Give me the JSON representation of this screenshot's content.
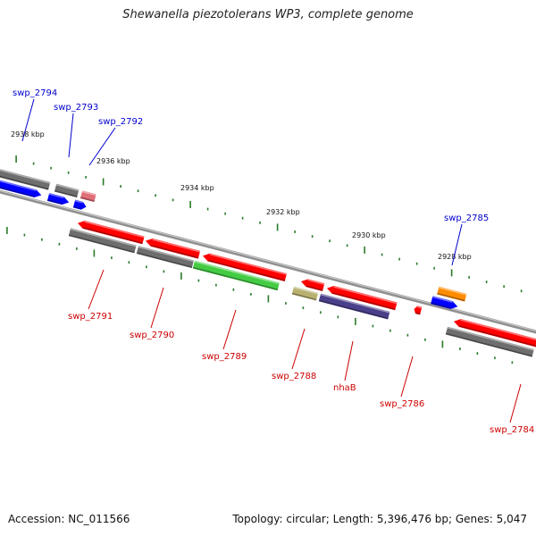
{
  "title": "Shewanella piezotolerans WP3, complete genome",
  "footer": {
    "accession": "Accession: NC_011566",
    "info": "Topology: circular; Length: 5,396,476 bp; Genes: 5,047"
  },
  "colors": {
    "backbone": "#8f8f8f",
    "tick": "#2a7a2a",
    "label_top": "#0000cc",
    "label_bottom": "#cc0000"
  },
  "kbp_labels": [
    "2938 kbp",
    "2936 kbp",
    "2934 kbp",
    "2932 kbp",
    "2930 kbp",
    "2928 kbp"
  ],
  "genes": [
    {
      "name": "swp_2794",
      "strand": "top",
      "color": "#0000ff"
    },
    {
      "name": "swp_2793",
      "strand": "top",
      "color": "#0000ff"
    },
    {
      "name": "swp_2792",
      "strand": "top",
      "color": "#e06e78"
    },
    {
      "name": "swp_2785",
      "strand": "top",
      "color": "#ff8c00"
    },
    {
      "name": "swp_2791",
      "strand": "bottom",
      "color": "#ff0000"
    },
    {
      "name": "swp_2790",
      "strand": "bottom",
      "color": "#ff0000"
    },
    {
      "name": "swp_2789",
      "strand": "bottom",
      "color": "#ff0000"
    },
    {
      "name": "swp_2788",
      "strand": "bottom",
      "color": "#ff0000"
    },
    {
      "name": "nhaB",
      "strand": "bottom",
      "color": "#ff0000"
    },
    {
      "name": "swp_2786",
      "strand": "bottom",
      "color": "#ff0000"
    },
    {
      "name": "swp_2784",
      "strand": "bottom",
      "color": "#ff0000"
    }
  ]
}
